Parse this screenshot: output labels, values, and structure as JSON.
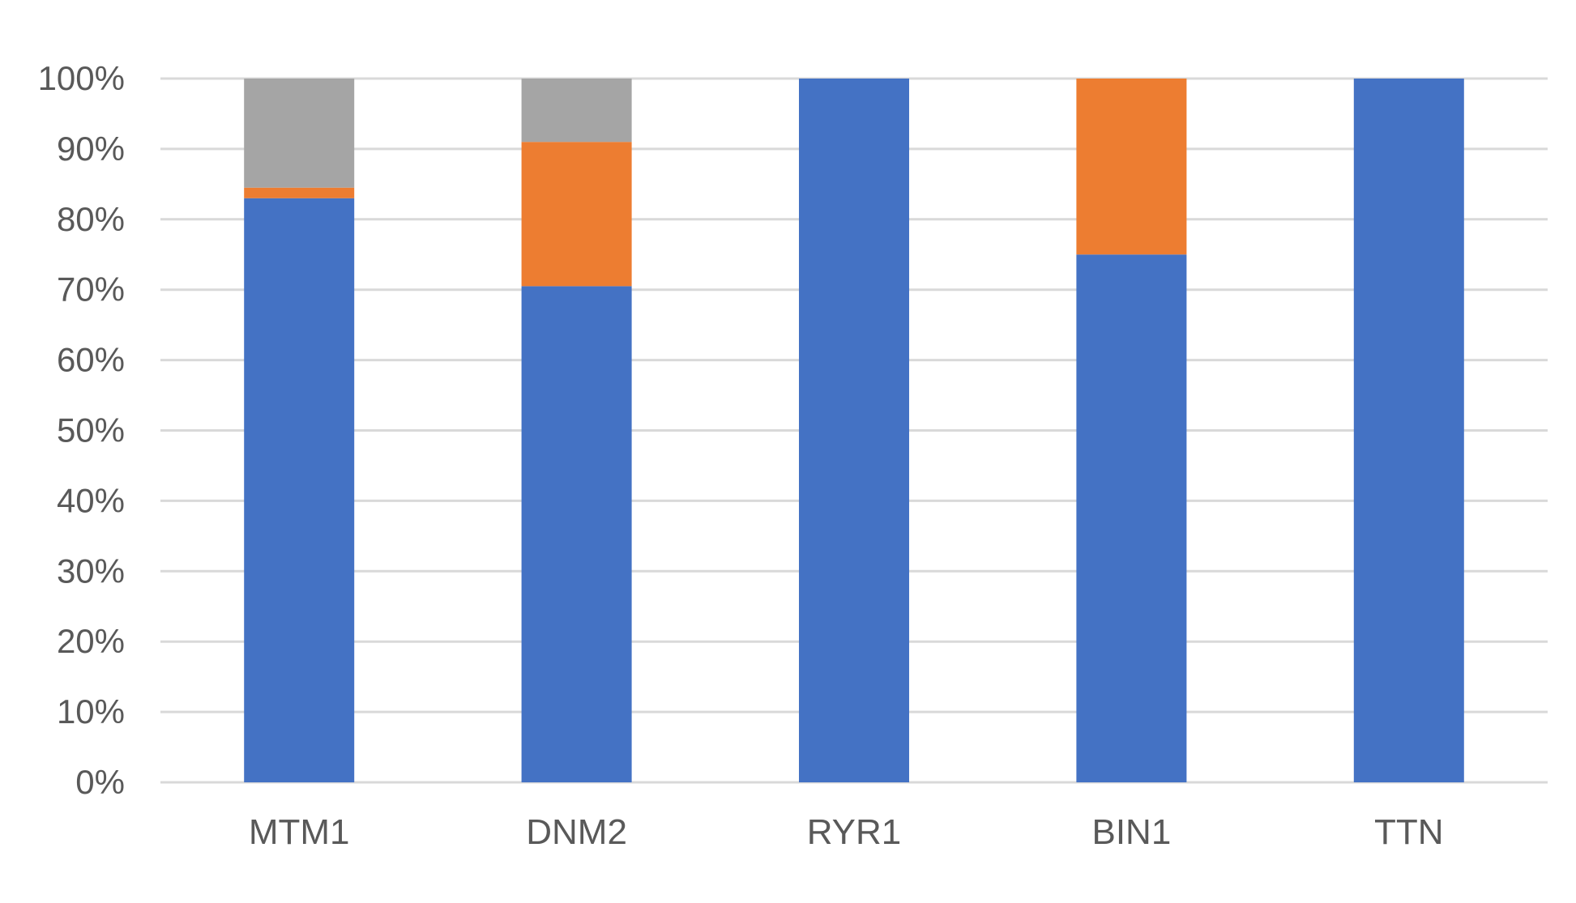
{
  "chart_data": {
    "type": "bar",
    "stacked": true,
    "percent_stacked": true,
    "categories": [
      "MTM1",
      "DNM2",
      "RYR1",
      "BIN1",
      "TTN"
    ],
    "series": [
      {
        "color": "#4472C4",
        "values": [
          83,
          70.5,
          100,
          75,
          100
        ]
      },
      {
        "color": "#ED7D31",
        "values": [
          1.5,
          20.5,
          0,
          25,
          0
        ]
      },
      {
        "color": "#A5A5A5",
        "values": [
          15.5,
          9,
          0,
          0,
          0
        ]
      }
    ],
    "ylim": [
      0,
      100
    ],
    "yticks": [
      "0%",
      "10%",
      "20%",
      "30%",
      "40%",
      "50%",
      "60%",
      "70%",
      "80%",
      "90%",
      "100%"
    ],
    "grid": true,
    "legend": "none"
  }
}
